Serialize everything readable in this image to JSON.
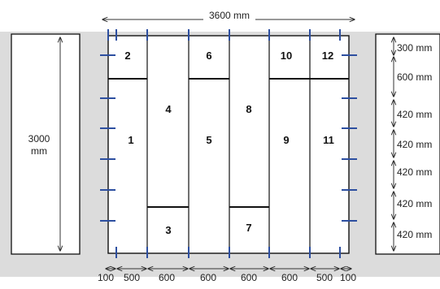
{
  "colors": {
    "background": "#ffffff",
    "wall_fill": "#dcdcdc",
    "panel_stroke": "#111111",
    "tick_mark": "#2d4fa0",
    "dimension_line": "#333333"
  },
  "dimensions": {
    "total_width": "3600 mm",
    "total_height": "3000",
    "total_height_unit": "mm",
    "right_spacing": [
      "300 mm",
      "600 mm",
      "420 mm",
      "420 mm",
      "420 mm",
      "420 mm",
      "420 mm"
    ],
    "bottom_spacing": [
      "100",
      "500",
      "600",
      "600",
      "600",
      "600",
      "500",
      "100"
    ]
  },
  "panels": [
    "1",
    "2",
    "3",
    "4",
    "5",
    "6",
    "7",
    "8",
    "9",
    "10",
    "11",
    "12"
  ]
}
